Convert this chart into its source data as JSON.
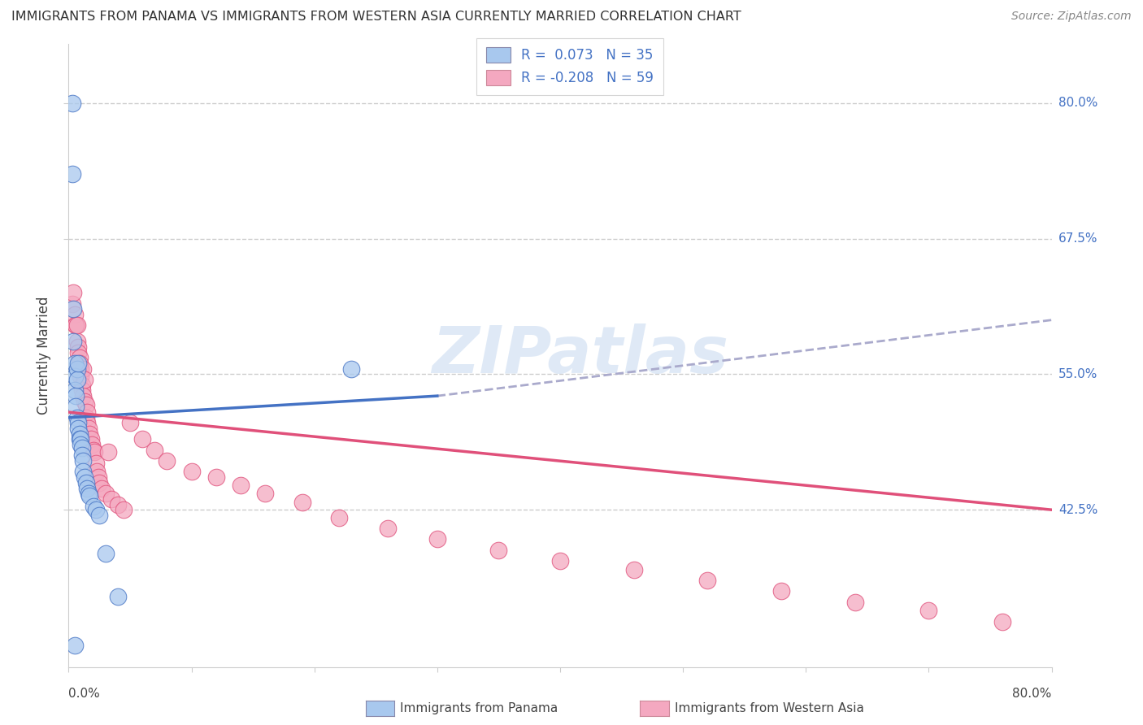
{
  "title": "IMMIGRANTS FROM PANAMA VS IMMIGRANTS FROM WESTERN ASIA CURRENTLY MARRIED CORRELATION CHART",
  "source": "Source: ZipAtlas.com",
  "ylabel": "Currently Married",
  "ytick_labels": [
    "80.0%",
    "67.5%",
    "55.0%",
    "42.5%"
  ],
  "ytick_values": [
    0.8,
    0.675,
    0.55,
    0.425
  ],
  "xlim": [
    0.0,
    0.8
  ],
  "ylim": [
    0.28,
    0.855
  ],
  "watermark": "ZIPatlas",
  "color_blue": "#A8C8EE",
  "color_pink": "#F4A8C0",
  "line_blue": "#4472C4",
  "line_pink": "#E0507A",
  "line_dashed_color": "#AAAACC",
  "bg_color": "#FFFFFF",
  "grid_color": "#CCCCCC",
  "panama_x": [
    0.003,
    0.003,
    0.004,
    0.004,
    0.005,
    0.005,
    0.005,
    0.006,
    0.006,
    0.007,
    0.007,
    0.007,
    0.008,
    0.008,
    0.008,
    0.009,
    0.009,
    0.01,
    0.01,
    0.011,
    0.011,
    0.012,
    0.012,
    0.013,
    0.014,
    0.015,
    0.016,
    0.017,
    0.02,
    0.022,
    0.025,
    0.03,
    0.04,
    0.23,
    0.005
  ],
  "panama_y": [
    0.8,
    0.735,
    0.61,
    0.58,
    0.56,
    0.548,
    0.535,
    0.53,
    0.52,
    0.555,
    0.545,
    0.51,
    0.505,
    0.5,
    0.56,
    0.495,
    0.49,
    0.49,
    0.485,
    0.482,
    0.475,
    0.47,
    0.46,
    0.455,
    0.45,
    0.445,
    0.44,
    0.438,
    0.428,
    0.425,
    0.42,
    0.385,
    0.345,
    0.555,
    0.3
  ],
  "western_x": [
    0.003,
    0.004,
    0.005,
    0.006,
    0.006,
    0.007,
    0.007,
    0.008,
    0.008,
    0.009,
    0.009,
    0.01,
    0.01,
    0.011,
    0.011,
    0.012,
    0.012,
    0.013,
    0.013,
    0.014,
    0.014,
    0.015,
    0.015,
    0.016,
    0.017,
    0.018,
    0.019,
    0.02,
    0.021,
    0.022,
    0.023,
    0.024,
    0.025,
    0.027,
    0.03,
    0.032,
    0.035,
    0.04,
    0.045,
    0.05,
    0.06,
    0.07,
    0.08,
    0.1,
    0.12,
    0.14,
    0.16,
    0.19,
    0.22,
    0.26,
    0.3,
    0.35,
    0.4,
    0.46,
    0.52,
    0.58,
    0.64,
    0.7,
    0.76
  ],
  "western_y": [
    0.615,
    0.625,
    0.605,
    0.595,
    0.595,
    0.58,
    0.595,
    0.575,
    0.57,
    0.565,
    0.56,
    0.555,
    0.548,
    0.54,
    0.535,
    0.53,
    0.555,
    0.545,
    0.525,
    0.522,
    0.51,
    0.515,
    0.505,
    0.5,
    0.495,
    0.49,
    0.485,
    0.48,
    0.478,
    0.468,
    0.46,
    0.455,
    0.45,
    0.445,
    0.44,
    0.478,
    0.435,
    0.43,
    0.425,
    0.505,
    0.49,
    0.48,
    0.47,
    0.46,
    0.455,
    0.448,
    0.44,
    0.432,
    0.418,
    0.408,
    0.398,
    0.388,
    0.378,
    0.37,
    0.36,
    0.35,
    0.34,
    0.332,
    0.322
  ],
  "panama_line_x0": 0.0,
  "panama_line_y0": 0.51,
  "panama_line_x1": 0.3,
  "panama_line_y1": 0.53,
  "panama_line_xd0": 0.3,
  "panama_line_yd0": 0.53,
  "panama_line_xd1": 0.8,
  "panama_line_yd1": 0.6,
  "western_line_x0": 0.0,
  "western_line_y0": 0.515,
  "western_line_x1": 0.8,
  "western_line_y1": 0.425
}
